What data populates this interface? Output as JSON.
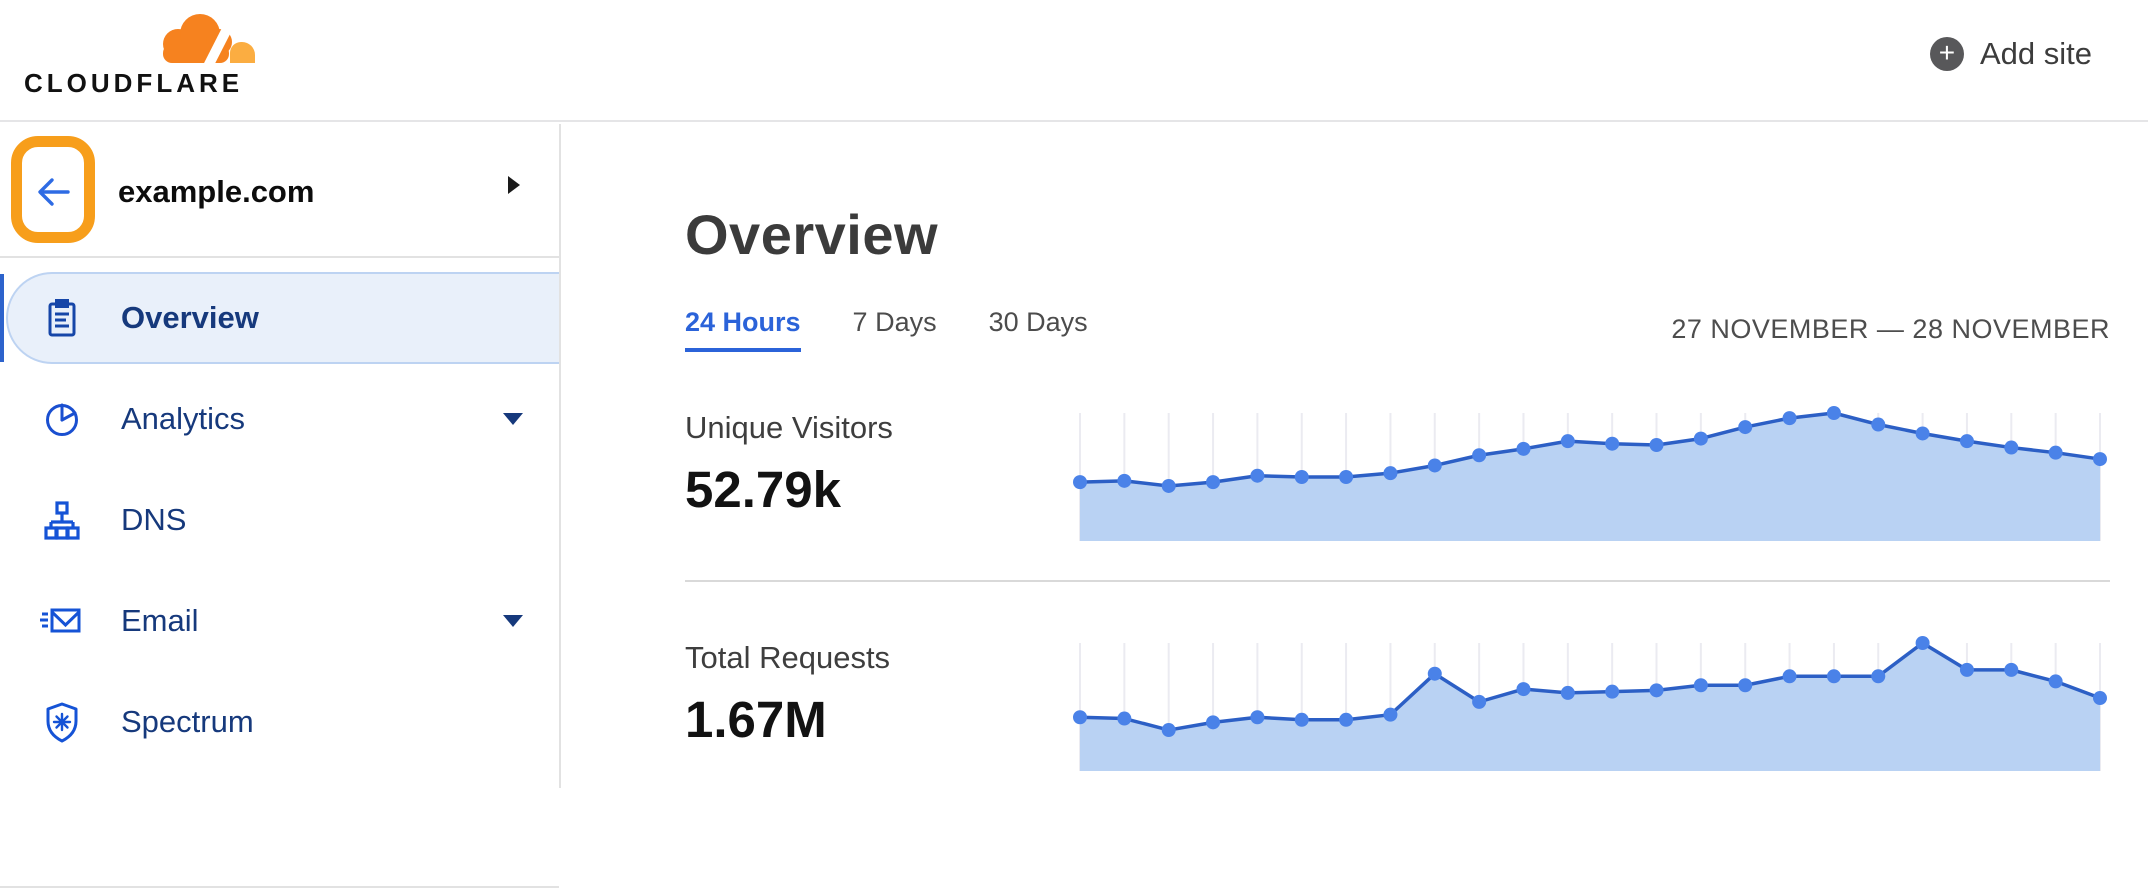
{
  "header": {
    "brand": "CLOUDFLARE",
    "add_site_label": "Add site",
    "brand_orange": "#F6821F",
    "brand_orange_light": "#FBAD41"
  },
  "sidebar": {
    "site": {
      "name": "example.com"
    },
    "items": [
      {
        "label": "Overview",
        "icon": "clipboard-icon",
        "selected": true,
        "has_caret": false
      },
      {
        "label": "Analytics",
        "icon": "pie-chart-icon",
        "selected": false,
        "has_caret": true
      },
      {
        "label": "DNS",
        "icon": "dns-tree-icon",
        "selected": false,
        "has_caret": false
      },
      {
        "label": "Email",
        "icon": "envelope-icon",
        "selected": false,
        "has_caret": true
      },
      {
        "label": "Spectrum",
        "icon": "shield-icon",
        "selected": false,
        "has_caret": false
      }
    ]
  },
  "annotation": {
    "type": "highlight-box",
    "target": "back-button",
    "color": "#F79E1B"
  },
  "main": {
    "title": "Overview",
    "tabs": [
      {
        "label": "24 Hours",
        "active": true
      },
      {
        "label": "7 Days",
        "active": false
      },
      {
        "label": "30 Days",
        "active": false
      }
    ],
    "date_range": "27 NOVEMBER — 28 NOVEMBER",
    "metrics": [
      {
        "label": "Unique Visitors",
        "value": "52.79k"
      },
      {
        "label": "Total Requests",
        "value": "1.67M"
      }
    ]
  },
  "colors": {
    "accent_blue": "#2b63d9",
    "nav_navy": "#16397c",
    "icon_blue": "#1a4fd0",
    "selected_bg": "#e9f0fa",
    "separator": "#e2e2e2"
  },
  "chart_data": [
    {
      "type": "area",
      "title": "Unique Visitors",
      "total_shown": "52.79k",
      "x_description": "24 hourly points, 27 November — 28 November (no axis labels shown)",
      "values_normalized": [
        0.46,
        0.47,
        0.43,
        0.46,
        0.51,
        0.5,
        0.5,
        0.53,
        0.59,
        0.67,
        0.72,
        0.78,
        0.76,
        0.75,
        0.8,
        0.89,
        0.96,
        1.0,
        0.91,
        0.84,
        0.78,
        0.73,
        0.69,
        0.64
      ],
      "grid": true,
      "line_color": "#2c5fc5",
      "dot_color": "#4a82e8",
      "fill_color": "#b9d2f3",
      "grid_color": "#ebebf1"
    },
    {
      "type": "area",
      "title": "Total Requests",
      "total_shown": "1.67M",
      "x_description": "24 hourly points, 27 November — 28 November (no axis labels shown)",
      "values_normalized": [
        0.42,
        0.41,
        0.32,
        0.38,
        0.42,
        0.4,
        0.4,
        0.44,
        0.76,
        0.54,
        0.64,
        0.61,
        0.62,
        0.63,
        0.67,
        0.67,
        0.74,
        0.74,
        0.74,
        1.0,
        0.79,
        0.79,
        0.7,
        0.57
      ],
      "grid": true,
      "line_color": "#2c5fc5",
      "dot_color": "#4a82e8",
      "fill_color": "#b9d2f3",
      "grid_color": "#ebebf1"
    }
  ]
}
